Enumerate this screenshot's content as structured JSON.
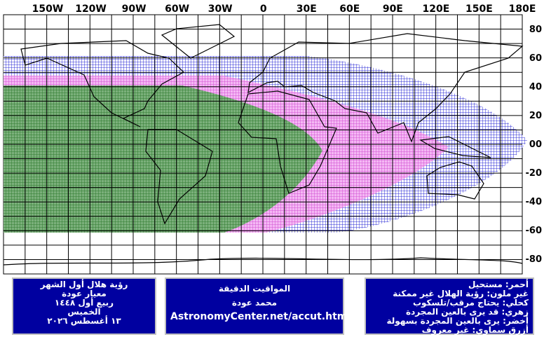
{
  "map": {
    "lon_labels": [
      "150W",
      "120W",
      "90W",
      "60W",
      "30W",
      "0",
      "30E",
      "60E",
      "90E",
      "120E",
      "150E",
      "180E"
    ],
    "lat_labels": [
      "80",
      "60",
      "40",
      "20",
      "00",
      "-20",
      "-40",
      "-60",
      "-80"
    ]
  },
  "boxes": [
    {
      "lines": [
        "رؤية هلال أول الشهر",
        "معيار عودة",
        "ربيع أول ١٤٤٨",
        "الخميس",
        "١٣ أغسطس ٢٠٢٦"
      ]
    },
    {
      "lines": [
        "المواقيت الدقيقة",
        "محمد عودة",
        "AstronomyCenter.net/accut.html"
      ]
    },
    {
      "lines": [
        "أحمر: مستحيل",
        "غير ملون: رؤية الهلال غير ممكنة",
        "كحلي: يحتاج مرقب/تلسكوب",
        "زهري: قد يرى بالعين المجردة",
        "أخضر: يرى بالعين المجردة بسهولة",
        "أزرق سماوي: غير معروف"
      ]
    }
  ]
}
